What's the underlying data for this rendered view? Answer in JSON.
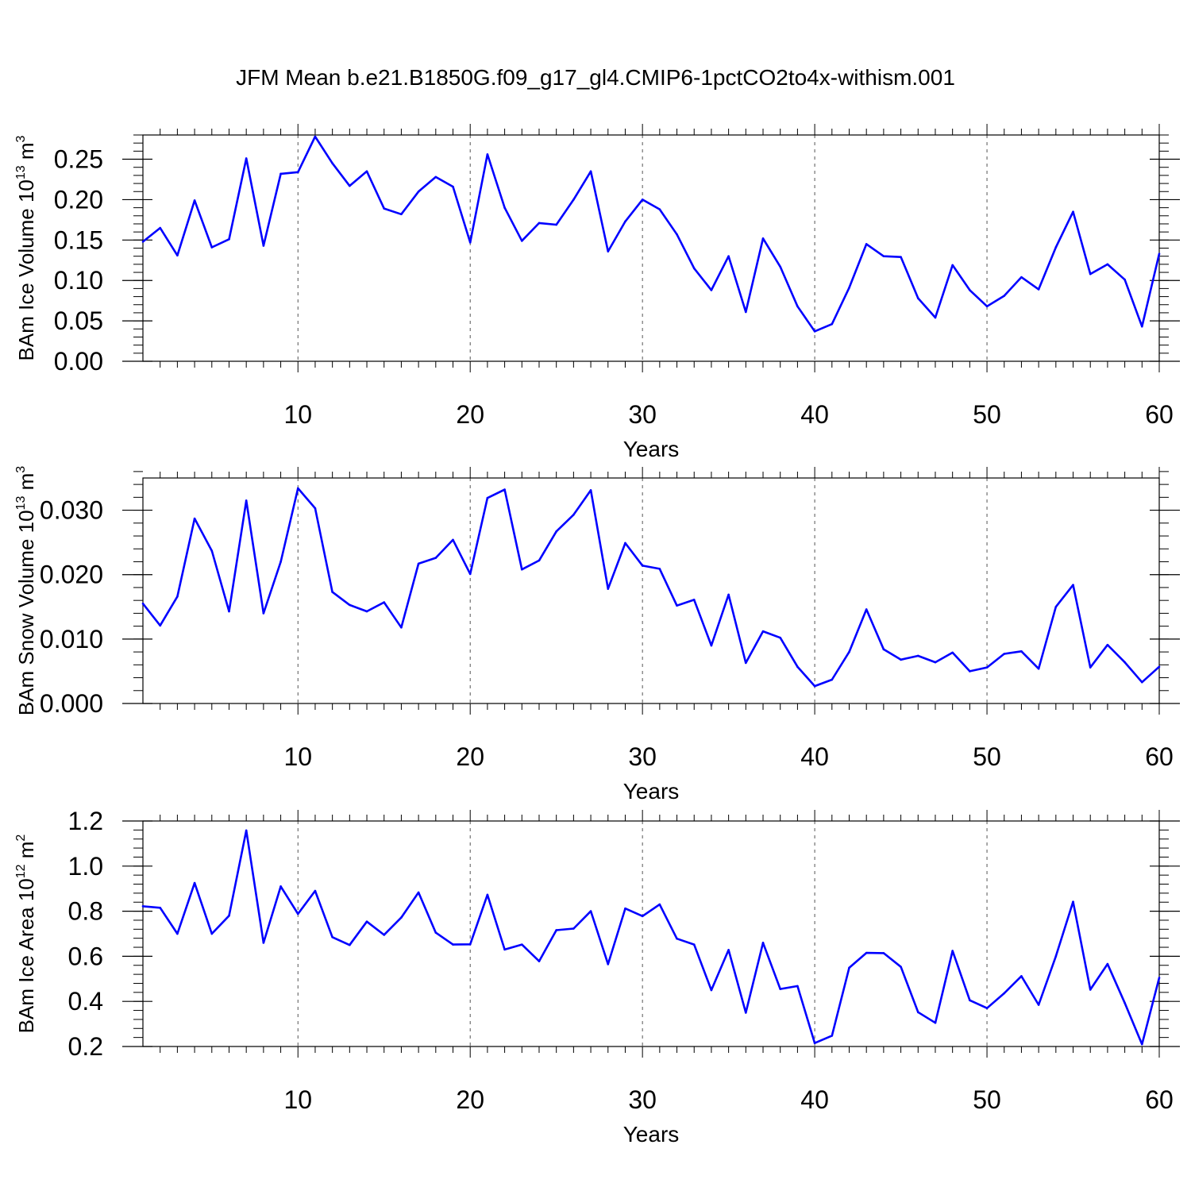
{
  "title": "JFM Mean b.e21.B1850G.f09_g17_gl4.CMIP6-1pctCO2to4x-withism.001",
  "colors": {
    "line": "#0000ff",
    "axis": "#000000",
    "grid": "#555555"
  },
  "chart_data": [
    {
      "type": "line",
      "name": "ice-volume",
      "ylabel": "BAm Ice Volume 10",
      "ylabel_exp": "13",
      "ylabel_unit": " m",
      "ylabel_unit_exp": "3",
      "xlabel": "Years",
      "xlim": [
        1,
        60
      ],
      "ylim": [
        0,
        0.28
      ],
      "xticks": [
        10,
        20,
        30,
        40,
        50,
        60
      ],
      "xtick_labels": [
        "10",
        "20",
        "30",
        "40",
        "50",
        "60"
      ],
      "yticks": [
        0,
        0.05,
        0.1,
        0.15,
        0.2,
        0.25
      ],
      "ytick_labels": [
        "0.00",
        "0.05",
        "0.10",
        "0.15",
        "0.20",
        "0.25"
      ],
      "yminor": 0.01,
      "x": [
        1,
        2,
        3,
        4,
        5,
        6,
        7,
        8,
        9,
        10,
        11,
        12,
        13,
        14,
        15,
        16,
        17,
        18,
        19,
        20,
        21,
        22,
        23,
        24,
        25,
        26,
        27,
        28,
        29,
        30,
        31,
        32,
        33,
        34,
        35,
        36,
        37,
        38,
        39,
        40,
        41,
        42,
        43,
        44,
        45,
        46,
        47,
        48,
        49,
        50,
        51,
        52,
        53,
        54,
        55,
        56,
        57,
        58,
        59,
        60
      ],
      "values": [
        0.148,
        0.165,
        0.131,
        0.199,
        0.141,
        0.151,
        0.251,
        0.143,
        0.232,
        0.234,
        0.278,
        0.245,
        0.217,
        0.235,
        0.189,
        0.182,
        0.21,
        0.228,
        0.216,
        0.147,
        0.256,
        0.19,
        0.149,
        0.171,
        0.169,
        0.2,
        0.235,
        0.136,
        0.173,
        0.2,
        0.188,
        0.157,
        0.115,
        0.088,
        0.13,
        0.061,
        0.152,
        0.117,
        0.068,
        0.037,
        0.046,
        0.091,
        0.145,
        0.13,
        0.129,
        0.078,
        0.054,
        0.119,
        0.088,
        0.068,
        0.081,
        0.104,
        0.089,
        0.141,
        0.185,
        0.108,
        0.12,
        0.101,
        0.043,
        0.133
      ]
    },
    {
      "type": "line",
      "name": "snow-volume",
      "ylabel": "BAm Snow Volume 10",
      "ylabel_exp": "13",
      "ylabel_unit": " m",
      "ylabel_unit_exp": "3",
      "xlabel": "Years",
      "xlim": [
        1,
        60
      ],
      "ylim": [
        0,
        0.035
      ],
      "xticks": [
        10,
        20,
        30,
        40,
        50,
        60
      ],
      "xtick_labels": [
        "10",
        "20",
        "30",
        "40",
        "50",
        "60"
      ],
      "yticks": [
        0,
        0.01,
        0.02,
        0.03
      ],
      "ytick_labels": [
        "0.000",
        "0.010",
        "0.020",
        "0.030"
      ],
      "yminor": 0.002,
      "x": [
        1,
        2,
        3,
        4,
        5,
        6,
        7,
        8,
        9,
        10,
        11,
        12,
        13,
        14,
        15,
        16,
        17,
        18,
        19,
        20,
        21,
        22,
        23,
        24,
        25,
        26,
        27,
        28,
        29,
        30,
        31,
        32,
        33,
        34,
        35,
        36,
        37,
        38,
        39,
        40,
        41,
        42,
        43,
        44,
        45,
        46,
        47,
        48,
        49,
        50,
        51,
        52,
        53,
        54,
        55,
        56,
        57,
        58,
        59,
        60
      ],
      "values": [
        0.0155,
        0.0121,
        0.0166,
        0.0287,
        0.0237,
        0.0143,
        0.0315,
        0.014,
        0.022,
        0.0334,
        0.0303,
        0.0173,
        0.0153,
        0.0143,
        0.0157,
        0.0118,
        0.0217,
        0.0226,
        0.0254,
        0.0201,
        0.0319,
        0.0332,
        0.0208,
        0.0222,
        0.0267,
        0.0293,
        0.0331,
        0.0178,
        0.0249,
        0.0214,
        0.0209,
        0.0152,
        0.0161,
        0.009,
        0.0169,
        0.0063,
        0.0112,
        0.0102,
        0.0057,
        0.0027,
        0.0037,
        0.008,
        0.0146,
        0.0084,
        0.0068,
        0.0074,
        0.0064,
        0.0079,
        0.005,
        0.0056,
        0.0077,
        0.0081,
        0.0054,
        0.015,
        0.0184,
        0.0056,
        0.0091,
        0.0064,
        0.0033,
        0.0057
      ]
    },
    {
      "type": "line",
      "name": "ice-area",
      "ylabel": "BAm Ice Area 10",
      "ylabel_exp": "12",
      "ylabel_unit": " m",
      "ylabel_unit_exp": "2",
      "xlabel": "Years",
      "xlim": [
        1,
        60
      ],
      "ylim": [
        0.2,
        1.2
      ],
      "xticks": [
        10,
        20,
        30,
        40,
        50,
        60
      ],
      "xtick_labels": [
        "10",
        "20",
        "30",
        "40",
        "50",
        "60"
      ],
      "yticks": [
        0.2,
        0.4,
        0.6,
        0.8,
        1.0,
        1.2
      ],
      "ytick_labels": [
        "0.2",
        "0.4",
        "0.6",
        "0.8",
        "1.0",
        "1.2"
      ],
      "yminor": 0.04,
      "x": [
        1,
        2,
        3,
        4,
        5,
        6,
        7,
        8,
        9,
        10,
        11,
        12,
        13,
        14,
        15,
        16,
        17,
        18,
        19,
        20,
        21,
        22,
        23,
        24,
        25,
        26,
        27,
        28,
        29,
        30,
        31,
        32,
        33,
        34,
        35,
        36,
        37,
        38,
        39,
        40,
        41,
        42,
        43,
        44,
        45,
        46,
        47,
        48,
        49,
        50,
        51,
        52,
        53,
        54,
        55,
        56,
        57,
        58,
        59,
        60
      ],
      "values": [
        0.822,
        0.815,
        0.7,
        0.925,
        0.7,
        0.78,
        1.158,
        0.66,
        0.91,
        0.788,
        0.89,
        0.685,
        0.65,
        0.754,
        0.695,
        0.772,
        0.883,
        0.705,
        0.652,
        0.653,
        0.873,
        0.63,
        0.652,
        0.578,
        0.716,
        0.723,
        0.8,
        0.565,
        0.812,
        0.778,
        0.83,
        0.678,
        0.652,
        0.45,
        0.628,
        0.35,
        0.66,
        0.455,
        0.468,
        0.215,
        0.248,
        0.549,
        0.615,
        0.614,
        0.553,
        0.352,
        0.305,
        0.624,
        0.405,
        0.37,
        0.436,
        0.512,
        0.385,
        0.6,
        0.842,
        0.452,
        0.566,
        0.393,
        0.21,
        0.505
      ]
    }
  ]
}
